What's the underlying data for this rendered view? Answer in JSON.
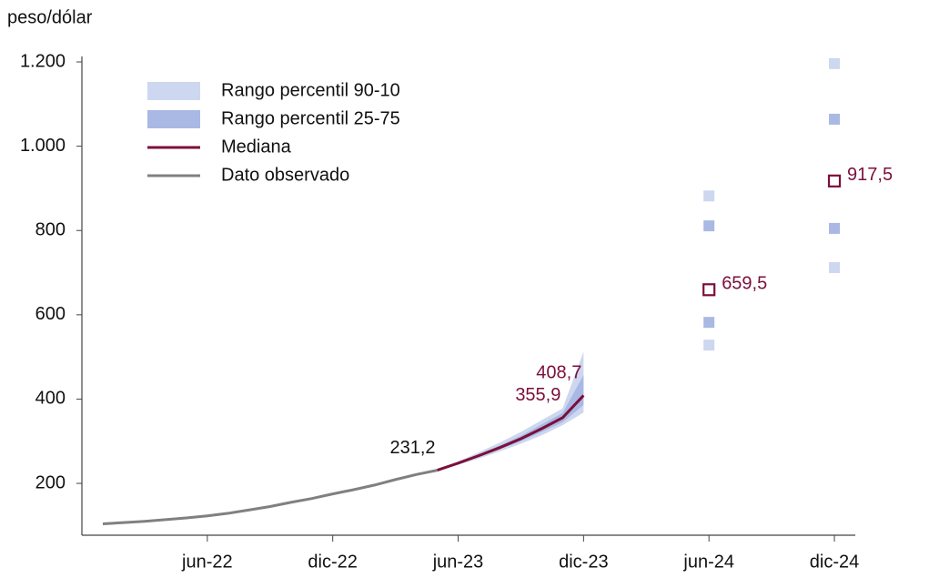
{
  "chart_data": {
    "type": "line",
    "y_label": "peso/dólar",
    "xlim": [
      "2021-12",
      "2025-01"
    ],
    "ylim": [
      77,
      1213
    ],
    "xticks": [
      {
        "value": "2022-06",
        "label": "jun-22"
      },
      {
        "value": "2022-12",
        "label": "dic-22"
      },
      {
        "value": "2023-06",
        "label": "jun-23"
      },
      {
        "value": "2023-12",
        "label": "dic-23"
      },
      {
        "value": "2024-06",
        "label": "jun-24"
      },
      {
        "value": "2024-12",
        "label": "dic-24"
      }
    ],
    "yticks": [
      200,
      400,
      600,
      800,
      {
        "value": 1000,
        "label": "1.000"
      },
      {
        "value": 1200,
        "label": "1.200"
      }
    ],
    "grid": false,
    "series": [
      {
        "name": "Rango percentil 90-10",
        "type": "band",
        "color": "#cdd7ef",
        "x": [
          "2023-05",
          "2023-06",
          "2023-07",
          "2023-08",
          "2023-09",
          "2023-10",
          "2023-11",
          "2023-12",
          "2024-06",
          "2024-12"
        ],
        "low": [
          231,
          244,
          259,
          276,
          294,
          314,
          338,
          368,
          528,
          712
        ],
        "high": [
          231,
          252,
          274,
          297,
          322,
          350,
          378,
          513,
          882,
          1196
        ]
      },
      {
        "name": "Rango percentil 25-75",
        "type": "band",
        "color": "#a9b9e3",
        "x": [
          "2023-05",
          "2023-06",
          "2023-07",
          "2023-08",
          "2023-09",
          "2023-10",
          "2023-11",
          "2023-12",
          "2024-06",
          "2024-12"
        ],
        "low": [
          231,
          246,
          263,
          281,
          300,
          322,
          345,
          386,
          582,
          805
        ],
        "high": [
          231,
          250,
          270,
          290,
          313,
          340,
          367,
          457,
          811,
          1064
        ]
      },
      {
        "name": "Mediana",
        "type": "line",
        "color": "#7b0f3a",
        "x": [
          "2023-05",
          "2023-06",
          "2023-07",
          "2023-08",
          "2023-09",
          "2023-10",
          "2023-11",
          "2023-12",
          "2024-06",
          "2024-12"
        ],
        "values": [
          231.2,
          248,
          266,
          285,
          306,
          330,
          355.9,
          408.7,
          659.5,
          917.5
        ],
        "value_labels": [
          "231,2",
          null,
          null,
          null,
          null,
          null,
          "355,9",
          "408,7",
          "659,5",
          "917,5"
        ]
      },
      {
        "name": "Dato observado",
        "type": "line",
        "color": "#808080",
        "x": [
          "2022-01",
          "2022-02",
          "2022-03",
          "2022-04",
          "2022-05",
          "2022-06",
          "2022-07",
          "2022-08",
          "2022-09",
          "2022-10",
          "2022-11",
          "2022-12",
          "2023-01",
          "2023-02",
          "2023-03",
          "2023-04",
          "2023-05"
        ],
        "values": [
          104,
          107,
          110,
          114,
          118,
          123,
          129,
          137,
          145,
          155,
          164,
          175,
          185,
          196,
          209,
          221,
          231.2
        ]
      }
    ]
  }
}
